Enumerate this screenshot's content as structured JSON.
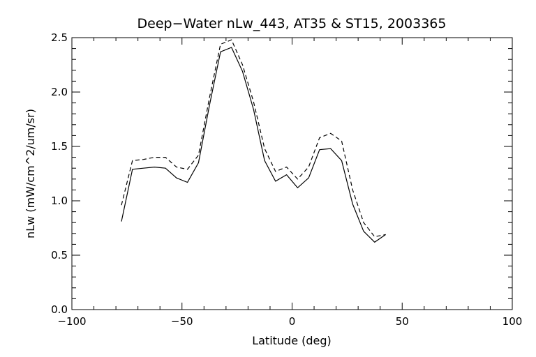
{
  "chart_data": {
    "type": "line",
    "title": "Deep−Water nLw_443, AT35 & ST15, 2003365",
    "xlabel": "Latitude (deg)",
    "ylabel": "nLw (mW/cm^2/um/sr)",
    "xlim": [
      -100,
      100
    ],
    "ylim": [
      0.0,
      2.5
    ],
    "x_ticks": [
      -100,
      -50,
      0,
      50,
      100
    ],
    "x_tick_labels": [
      "−100",
      "−50",
      "0",
      "50",
      "100"
    ],
    "y_ticks": [
      0.0,
      0.5,
      1.0,
      1.5,
      2.0,
      2.5
    ],
    "y_tick_labels": [
      "0.0",
      "0.5",
      "1.0",
      "1.5",
      "2.0",
      "2.5"
    ],
    "grid": false,
    "series": [
      {
        "style": "solid",
        "color": "#000000",
        "x": [
          -77.5,
          -72.5,
          -67.5,
          -62.5,
          -57.5,
          -52.5,
          -47.5,
          -42.5,
          -37.5,
          -32.5,
          -27.5,
          -22.5,
          -17.5,
          -12.5,
          -7.5,
          -2.5,
          2.5,
          7.5,
          12.5,
          17.5,
          22.5,
          27.5,
          32.5,
          37.5,
          42.5
        ],
        "values": [
          0.81,
          1.29,
          1.3,
          1.31,
          1.3,
          1.21,
          1.17,
          1.35,
          1.88,
          2.37,
          2.41,
          2.19,
          1.84,
          1.37,
          1.18,
          1.24,
          1.12,
          1.21,
          1.47,
          1.48,
          1.37,
          0.97,
          0.72,
          0.62,
          0.69
        ]
      },
      {
        "style": "dashed",
        "color": "#000000",
        "x": [
          -77.5,
          -72.5,
          -67.5,
          -62.5,
          -57.5,
          -52.5,
          -47.5,
          -42.5,
          -37.5,
          -32.5,
          -27.5,
          -22.5,
          -17.5,
          -12.5,
          -7.5,
          -2.5,
          2.5,
          7.5,
          12.5,
          17.5,
          22.5,
          27.5,
          32.5,
          37.5,
          42.5
        ],
        "values": [
          0.96,
          1.37,
          1.38,
          1.4,
          1.4,
          1.31,
          1.29,
          1.42,
          1.95,
          2.44,
          2.48,
          2.25,
          1.91,
          1.48,
          1.27,
          1.31,
          1.2,
          1.31,
          1.58,
          1.62,
          1.55,
          1.1,
          0.8,
          0.67,
          0.69
        ]
      }
    ]
  }
}
